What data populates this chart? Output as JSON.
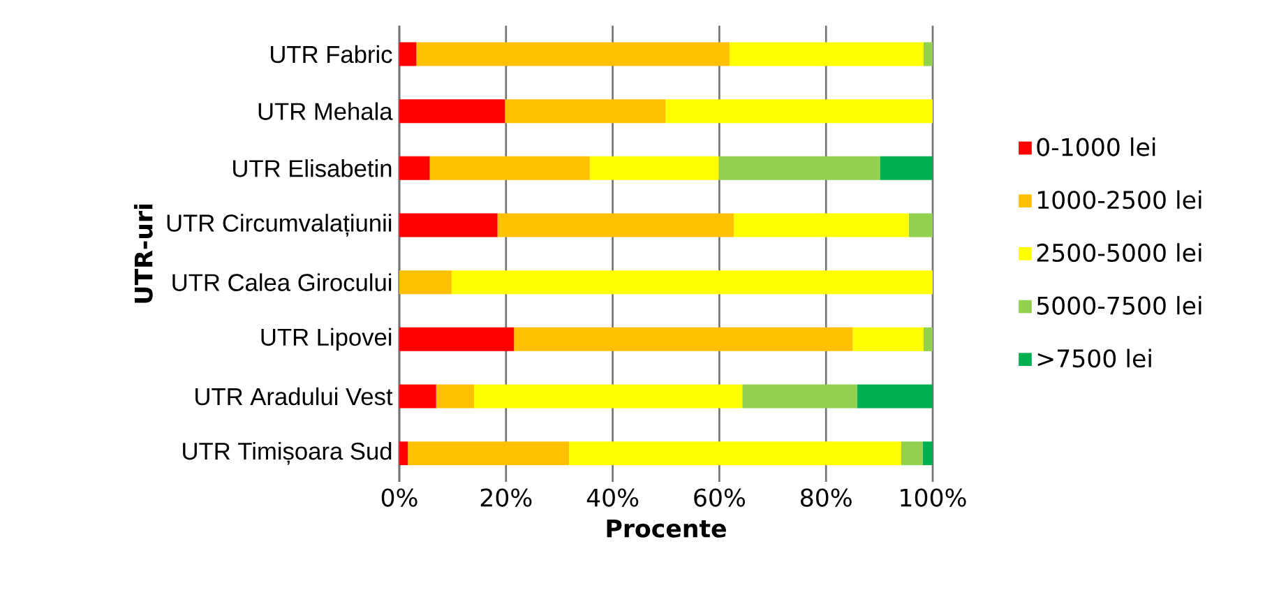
{
  "chart_data": {
    "type": "bar",
    "orientation": "horizontal",
    "stacked": true,
    "ylabel": "UTR-uri",
    "xlabel": "Procente",
    "categories": [
      "UTR Fabric",
      "UTR Mehala",
      "UTR Elisabetin",
      "UTR Circumvalațiunii",
      "UTR Calea Girocului",
      "UTR Lipovei",
      "UTR Aradului Vest",
      "UTR Timișoara Sud"
    ],
    "series": [
      {
        "name": "0-1000 lei",
        "color": "#ff0000",
        "values": [
          3.2,
          19.8,
          5.7,
          18.4,
          null,
          21.5,
          6.9,
          1.6
        ]
      },
      {
        "name": "1000-2500 lei",
        "color": "#ffc000",
        "values": [
          58.7,
          30.1,
          30.0,
          44.3,
          9.8,
          63.5,
          7.1,
          30.2
        ]
      },
      {
        "name": "2500-5000 lei",
        "color": "#ffff00",
        "values": [
          36.4,
          50.1,
          24.2,
          32.8,
          90.2,
          13.3,
          50.3,
          62.3
        ]
      },
      {
        "name": "5000-7500 lei",
        "color": "#92d050",
        "values": [
          1.7,
          null,
          30.2,
          4.5,
          null,
          1.7,
          21.5,
          4.0
        ]
      },
      {
        "name": ">7500 lei",
        "color": "#00b050",
        "values": [
          null,
          null,
          9.9,
          null,
          null,
          null,
          14.2,
          1.9
        ]
      }
    ],
    "xlim": [
      0,
      100
    ],
    "xticks": [
      {
        "value": 0,
        "label": "0%"
      },
      {
        "value": 20,
        "label": "20%"
      },
      {
        "value": 40,
        "label": "40%"
      },
      {
        "value": 60,
        "label": "60%"
      },
      {
        "value": 80,
        "label": "80%"
      },
      {
        "value": 100,
        "label": "100%"
      }
    ],
    "grid": "x",
    "legend": "right"
  }
}
